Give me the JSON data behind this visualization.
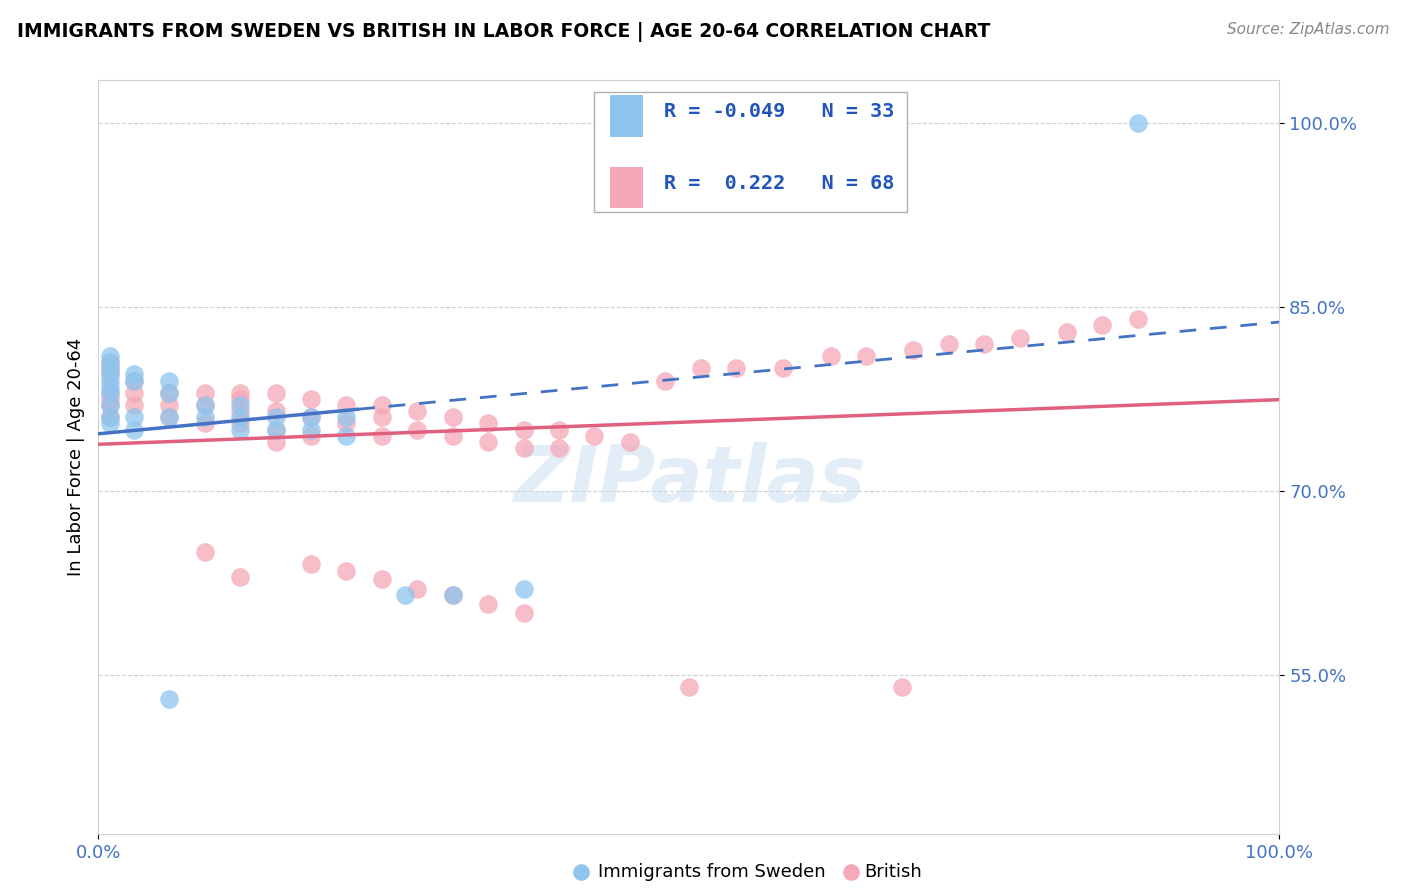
{
  "title": "IMMIGRANTS FROM SWEDEN VS BRITISH IN LABOR FORCE | AGE 20-64 CORRELATION CHART",
  "source": "Source: ZipAtlas.com",
  "ylabel": "In Labor Force | Age 20-64",
  "xlim": [
    0.0,
    1.0
  ],
  "ylim": [
    0.42,
    1.035
  ],
  "x_ticks": [
    0.0,
    1.0
  ],
  "x_tick_labels": [
    "0.0%",
    "100.0%"
  ],
  "y_ticks": [
    0.55,
    0.7,
    0.85,
    1.0
  ],
  "y_tick_labels": [
    "55.0%",
    "70.0%",
    "85.0%",
    "100.0%"
  ],
  "sweden_color": "#8ec4ee",
  "british_color": "#f5a8b8",
  "sweden_line_color": "#4472c4",
  "british_line_color": "#e06080",
  "watermark": "ZIPatlas",
  "legend_R_sweden": "-0.049",
  "legend_N_sweden": "33",
  "legend_R_british": "0.222",
  "legend_N_british": "68",
  "tick_color": "#4472c4",
  "grid_color": "#d0d0d0",
  "sweden_x": [
    0.01,
    0.01,
    0.01,
    0.01,
    0.01,
    0.01,
    0.01,
    0.01,
    0.01,
    0.01,
    0.03,
    0.03,
    0.03,
    0.03,
    0.06,
    0.06,
    0.06,
    0.09,
    0.09,
    0.12,
    0.12,
    0.12,
    0.15,
    0.15,
    0.18,
    0.18,
    0.21,
    0.21,
    0.26,
    0.3,
    0.36,
    0.06,
    0.88
  ],
  "sweden_y": [
    0.795,
    0.8,
    0.805,
    0.81,
    0.785,
    0.79,
    0.78,
    0.77,
    0.76,
    0.755,
    0.79,
    0.795,
    0.76,
    0.75,
    0.79,
    0.78,
    0.76,
    0.77,
    0.76,
    0.77,
    0.76,
    0.75,
    0.76,
    0.75,
    0.76,
    0.75,
    0.76,
    0.745,
    0.615,
    0.615,
    0.62,
    0.53,
    1.0
  ],
  "british_x": [
    0.01,
    0.01,
    0.01,
    0.01,
    0.01,
    0.01,
    0.01,
    0.03,
    0.03,
    0.03,
    0.06,
    0.06,
    0.06,
    0.09,
    0.09,
    0.09,
    0.12,
    0.12,
    0.12,
    0.12,
    0.15,
    0.15,
    0.15,
    0.15,
    0.18,
    0.18,
    0.18,
    0.21,
    0.21,
    0.24,
    0.24,
    0.24,
    0.27,
    0.27,
    0.3,
    0.3,
    0.33,
    0.33,
    0.36,
    0.36,
    0.39,
    0.39,
    0.42,
    0.45,
    0.48,
    0.51,
    0.54,
    0.58,
    0.62,
    0.65,
    0.69,
    0.72,
    0.75,
    0.78,
    0.82,
    0.85,
    0.88,
    0.5,
    0.68,
    0.18,
    0.21,
    0.24,
    0.27,
    0.3,
    0.33,
    0.36,
    0.09,
    0.12
  ],
  "british_y": [
    0.795,
    0.8,
    0.805,
    0.78,
    0.775,
    0.77,
    0.76,
    0.79,
    0.78,
    0.77,
    0.78,
    0.77,
    0.76,
    0.78,
    0.77,
    0.755,
    0.78,
    0.775,
    0.765,
    0.755,
    0.78,
    0.765,
    0.75,
    0.74,
    0.775,
    0.76,
    0.745,
    0.77,
    0.755,
    0.77,
    0.76,
    0.745,
    0.765,
    0.75,
    0.76,
    0.745,
    0.755,
    0.74,
    0.75,
    0.735,
    0.75,
    0.735,
    0.745,
    0.74,
    0.79,
    0.8,
    0.8,
    0.8,
    0.81,
    0.81,
    0.815,
    0.82,
    0.82,
    0.825,
    0.83,
    0.835,
    0.84,
    0.54,
    0.54,
    0.64,
    0.635,
    0.628,
    0.62,
    0.615,
    0.608,
    0.6,
    0.65,
    0.63
  ]
}
